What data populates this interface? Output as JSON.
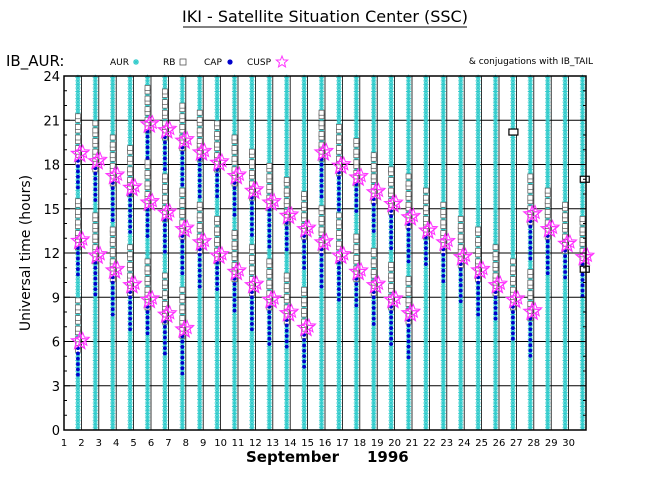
{
  "title": "IKI - Satellite Situation Center (SSC)",
  "chart_data": {
    "type": "scatter",
    "panel_label": "IB_AUR:",
    "legend": [
      {
        "label": "AUR",
        "marker": "asterisk",
        "color": "#33cccc"
      },
      {
        "label": "RB",
        "marker": "open-square",
        "color": "#555555"
      },
      {
        "label": "CAP",
        "marker": "filled-circle",
        "color": "#0000cc"
      },
      {
        "label": "CUSP",
        "marker": "star",
        "color": "#ff33ff"
      }
    ],
    "note": "& conjugations with IB_TAIL",
    "xlabel_month": "September",
    "xlabel_year": "1996",
    "ylabel": "Universal time (hours)",
    "xlim": [
      1,
      31
    ],
    "ylim": [
      0,
      24
    ],
    "x_ticks": [
      "1",
      "2",
      "3",
      "4",
      "5",
      "6",
      "7",
      "8",
      "9",
      "10",
      "11",
      "12",
      "13",
      "14",
      "15",
      "16",
      "17",
      "18",
      "19",
      "20",
      "21",
      "22",
      "23",
      "24",
      "25",
      "26",
      "27",
      "28",
      "29",
      "30"
    ],
    "y_ticks": [
      "0",
      "3",
      "6",
      "9",
      "12",
      "15",
      "18",
      "21",
      "24"
    ],
    "grid": true,
    "series": [
      {
        "name": "AUR",
        "description": "continuous periods along each orbit column",
        "columns_days": [
          1.8,
          2.8,
          3.8,
          4.8,
          5.8,
          6.8,
          7.8,
          8.8,
          9.8,
          10.8,
          11.8,
          12.8,
          13.8,
          14.8,
          15.8,
          16.8,
          17.8,
          18.8,
          19.8,
          20.8,
          21.8,
          22.8,
          23.8,
          24.8,
          25.8,
          26.8,
          27.8,
          28.8,
          29.8,
          30.8
        ]
      },
      {
        "name": "CUSP",
        "points_ut": [
          {
            "day": 1.9,
            "ut": 18.7
          },
          {
            "day": 1.9,
            "ut": 12.8
          },
          {
            "day": 1.9,
            "ut": 6.0
          },
          {
            "day": 2.9,
            "ut": 18.2
          },
          {
            "day": 2.9,
            "ut": 11.8
          },
          {
            "day": 3.9,
            "ut": 17.2
          },
          {
            "day": 3.9,
            "ut": 10.8
          },
          {
            "day": 4.9,
            "ut": 16.4
          },
          {
            "day": 4.9,
            "ut": 9.8
          },
          {
            "day": 5.9,
            "ut": 20.7
          },
          {
            "day": 5.9,
            "ut": 15.4
          },
          {
            "day": 5.9,
            "ut": 8.8
          },
          {
            "day": 6.9,
            "ut": 20.3
          },
          {
            "day": 6.9,
            "ut": 14.7
          },
          {
            "day": 6.9,
            "ut": 7.8
          },
          {
            "day": 7.9,
            "ut": 19.6
          },
          {
            "day": 7.9,
            "ut": 13.6
          },
          {
            "day": 7.9,
            "ut": 6.8
          },
          {
            "day": 8.9,
            "ut": 18.8
          },
          {
            "day": 8.9,
            "ut": 12.7
          },
          {
            "day": 9.9,
            "ut": 18.1
          },
          {
            "day": 9.9,
            "ut": 11.8
          },
          {
            "day": 10.9,
            "ut": 17.2
          },
          {
            "day": 10.9,
            "ut": 10.7
          },
          {
            "day": 11.9,
            "ut": 16.2
          },
          {
            "day": 11.9,
            "ut": 9.8
          },
          {
            "day": 12.9,
            "ut": 15.4
          },
          {
            "day": 12.9,
            "ut": 8.8
          },
          {
            "day": 13.9,
            "ut": 14.5
          },
          {
            "day": 13.9,
            "ut": 7.9
          },
          {
            "day": 14.9,
            "ut": 13.6
          },
          {
            "day": 14.9,
            "ut": 6.9
          },
          {
            "day": 15.9,
            "ut": 18.8
          },
          {
            "day": 15.9,
            "ut": 12.7
          },
          {
            "day": 16.9,
            "ut": 17.9
          },
          {
            "day": 16.9,
            "ut": 11.8
          },
          {
            "day": 17.9,
            "ut": 17.1
          },
          {
            "day": 17.9,
            "ut": 10.7
          },
          {
            "day": 18.9,
            "ut": 16.1
          },
          {
            "day": 18.9,
            "ut": 9.8
          },
          {
            "day": 19.9,
            "ut": 15.3
          },
          {
            "day": 19.9,
            "ut": 8.8
          },
          {
            "day": 20.9,
            "ut": 14.4
          },
          {
            "day": 20.9,
            "ut": 7.9
          },
          {
            "day": 21.9,
            "ut": 13.5
          },
          {
            "day": 22.9,
            "ut": 12.7
          },
          {
            "day": 23.9,
            "ut": 11.7
          },
          {
            "day": 24.9,
            "ut": 10.8
          },
          {
            "day": 25.9,
            "ut": 9.8
          },
          {
            "day": 26.9,
            "ut": 8.8
          },
          {
            "day": 27.9,
            "ut": 14.6
          },
          {
            "day": 27.9,
            "ut": 8.0
          },
          {
            "day": 28.9,
            "ut": 13.6
          },
          {
            "day": 29.9,
            "ut": 12.6
          },
          {
            "day": 30.9,
            "ut": 11.7
          }
        ]
      },
      {
        "name": "IB_TAIL conjugation",
        "points_ut": [
          {
            "day": 26.8,
            "ut": 20.2
          },
          {
            "day": 30.9,
            "ut": 17.0
          },
          {
            "day": 30.9,
            "ut": 10.9
          }
        ]
      }
    ]
  }
}
